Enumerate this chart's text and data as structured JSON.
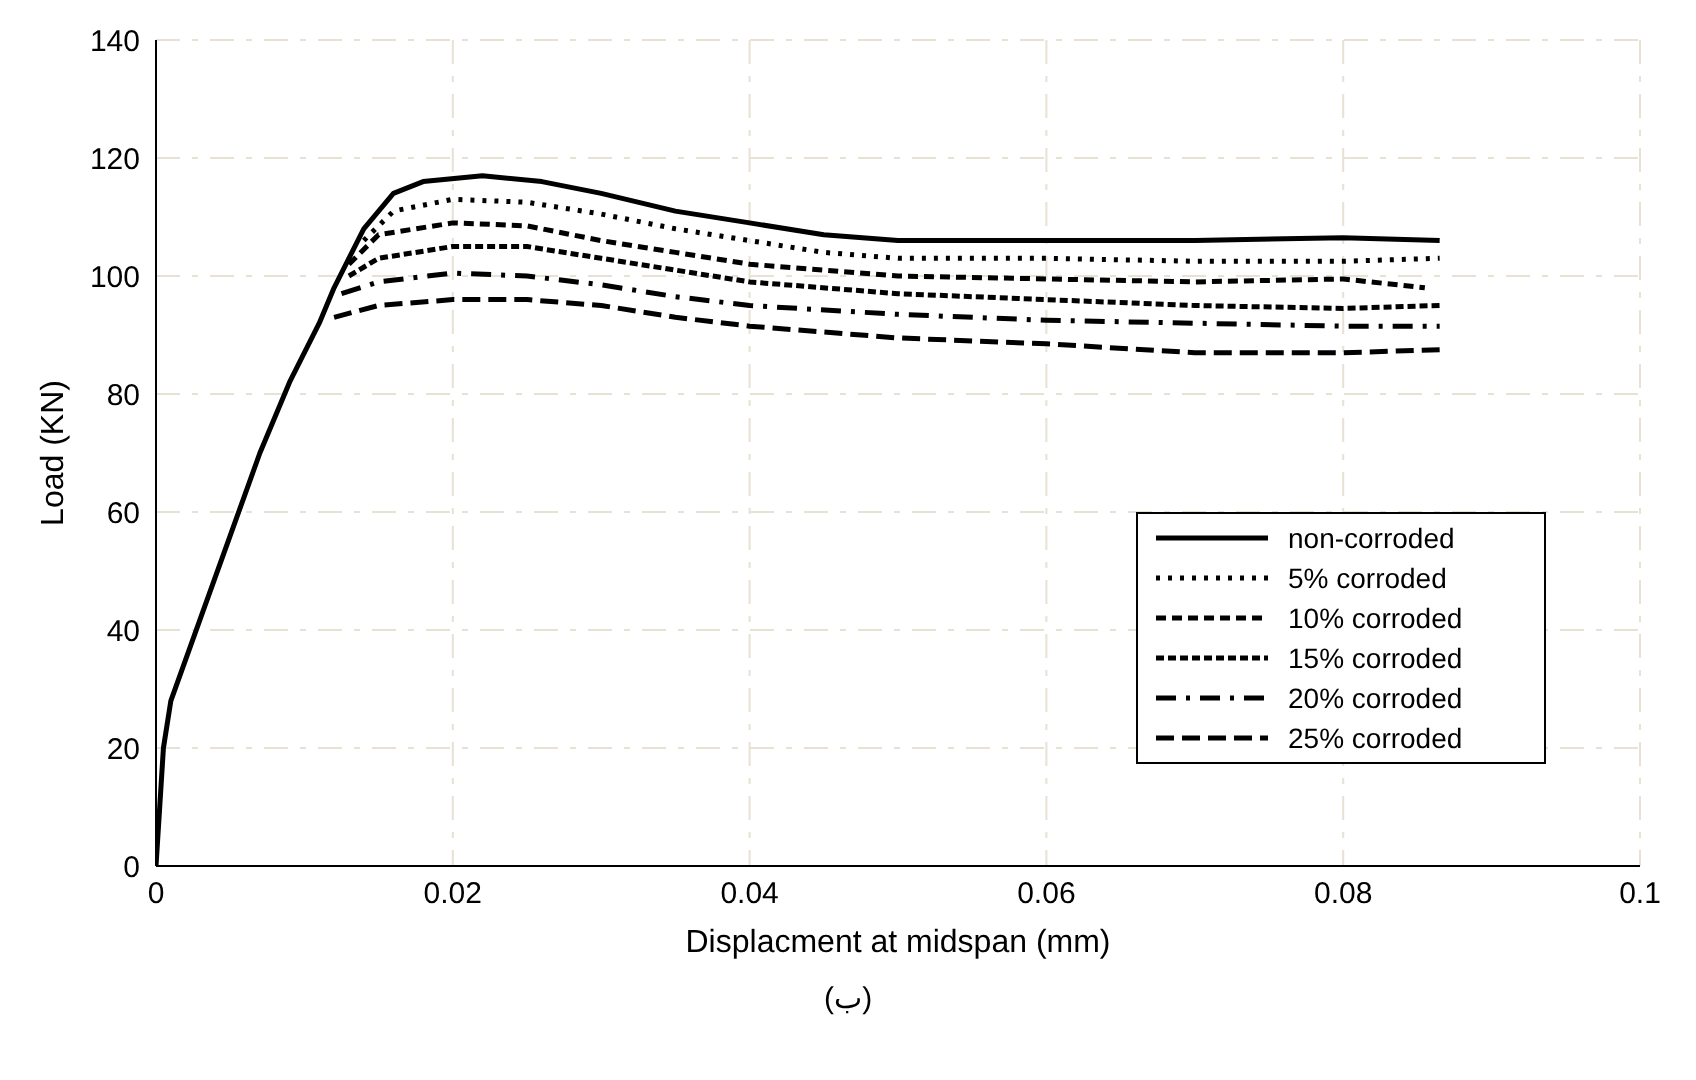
{
  "chart_data": {
    "type": "line",
    "xlabel": "Displacment at midspan (mm)",
    "ylabel": "Load (KN)",
    "xlim": [
      0,
      0.1
    ],
    "xticks": [
      0,
      0.02,
      0.04,
      0.06,
      0.08,
      0.1
    ],
    "ylim": [
      0,
      140
    ],
    "yticks": [
      0,
      20,
      40,
      60,
      80,
      100,
      120,
      140
    ],
    "grid": true,
    "legend": "bottom right",
    "marker": "none",
    "annotations": [
      "(ب)"
    ],
    "series": [
      {
        "name": "non-corroded",
        "color": "#000000",
        "line_style": "solid",
        "x": [
          0,
          0.0005,
          0.001,
          0.003,
          0.005,
          0.007,
          0.009,
          0.011,
          0.012,
          0.014,
          0.016,
          0.018,
          0.022,
          0.026,
          0.03,
          0.035,
          0.04,
          0.045,
          0.05,
          0.055,
          0.06,
          0.07,
          0.08,
          0.0865
        ],
        "values": [
          0,
          20,
          28,
          42,
          56,
          70,
          82,
          92,
          98,
          108,
          114,
          116,
          117,
          116,
          114,
          111,
          109,
          107,
          106,
          106,
          106,
          106,
          106.5,
          106
        ]
      },
      {
        "name": "5% corroded",
        "color": "#000000",
        "line_style": "dotted",
        "x": [
          0.014,
          0.016,
          0.02,
          0.025,
          0.03,
          0.035,
          0.04,
          0.045,
          0.05,
          0.06,
          0.07,
          0.08,
          0.0865
        ],
        "values": [
          106,
          111,
          113,
          112.5,
          110.5,
          108,
          106,
          104,
          103,
          103,
          102.5,
          102.5,
          103
        ]
      },
      {
        "name": "10% corroded",
        "color": "#000000",
        "line_style": "dashed",
        "x": [
          0.013,
          0.015,
          0.02,
          0.025,
          0.03,
          0.035,
          0.04,
          0.05,
          0.06,
          0.07,
          0.08,
          0.0855
        ],
        "values": [
          102,
          107,
          109,
          108.5,
          106,
          104,
          102,
          100,
          99.5,
          99,
          99.5,
          98
        ]
      },
      {
        "name": "15% corroded",
        "color": "#000000",
        "line_style": "dashed",
        "x": [
          0.013,
          0.015,
          0.02,
          0.025,
          0.03,
          0.035,
          0.04,
          0.05,
          0.06,
          0.07,
          0.08,
          0.0865
        ],
        "values": [
          100,
          103,
          105,
          105,
          103,
          101,
          99,
          97,
          96,
          95,
          94.5,
          95
        ]
      },
      {
        "name": "20% corroded",
        "color": "#000000",
        "line_style": "dashed",
        "x": [
          0.0125,
          0.015,
          0.02,
          0.025,
          0.03,
          0.035,
          0.04,
          0.05,
          0.06,
          0.07,
          0.08,
          0.0865
        ],
        "values": [
          97,
          99,
          100.5,
          100,
          98.5,
          96.5,
          95,
          93.5,
          92.5,
          92,
          91.5,
          91.5
        ]
      },
      {
        "name": "25% corroded",
        "color": "#000000",
        "line_style": "dashed",
        "x": [
          0.012,
          0.015,
          0.02,
          0.025,
          0.03,
          0.035,
          0.04,
          0.05,
          0.06,
          0.07,
          0.08,
          0.0865
        ],
        "values": [
          93,
          95,
          96,
          96,
          95,
          93,
          91.5,
          89.5,
          88.5,
          87,
          87,
          87.5
        ]
      }
    ]
  }
}
